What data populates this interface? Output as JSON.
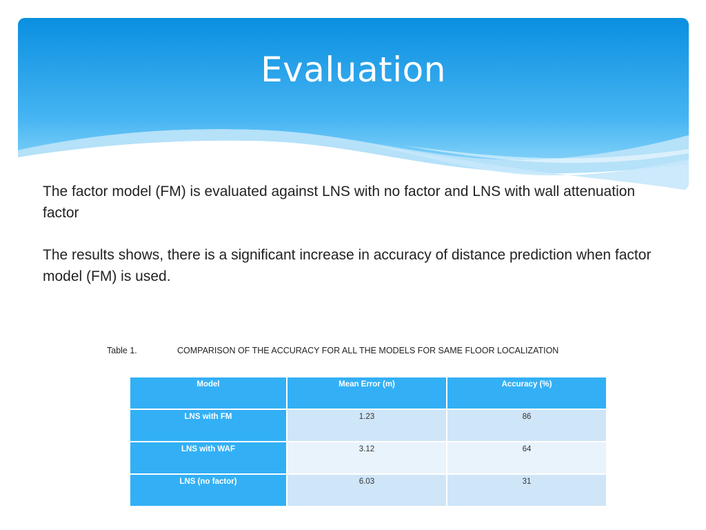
{
  "slide": {
    "title": "Evaluation",
    "paragraphs": [
      "The factor model  (FM) is evaluated against LNS with no factor and  LNS with wall attenuation factor",
      "The results shows, there is a significant increase in accuracy of distance prediction when factor model (FM) is used."
    ],
    "caption": {
      "label": "Table 1.",
      "text": "COMPARISON OF THE ACCURACY FOR ALL THE MODELS FOR SAME FLOOR LOCALIZATION"
    },
    "table": {
      "headers": [
        "Model",
        "Mean Error (m)",
        "Accuracy (%)"
      ],
      "rows": [
        [
          "LNS with FM",
          "1.23",
          "86"
        ],
        [
          "LNS with WAF",
          "3.12",
          "64"
        ],
        [
          "LNS (no factor)",
          "6.03",
          "31"
        ]
      ]
    },
    "colors": {
      "header_top": "#0a8fe0",
      "header_bottom": "#5ac0f6",
      "table_head": "#33b0f5",
      "row_light": "#cfe5f8",
      "row_lighter": "#e9f3fc"
    }
  }
}
